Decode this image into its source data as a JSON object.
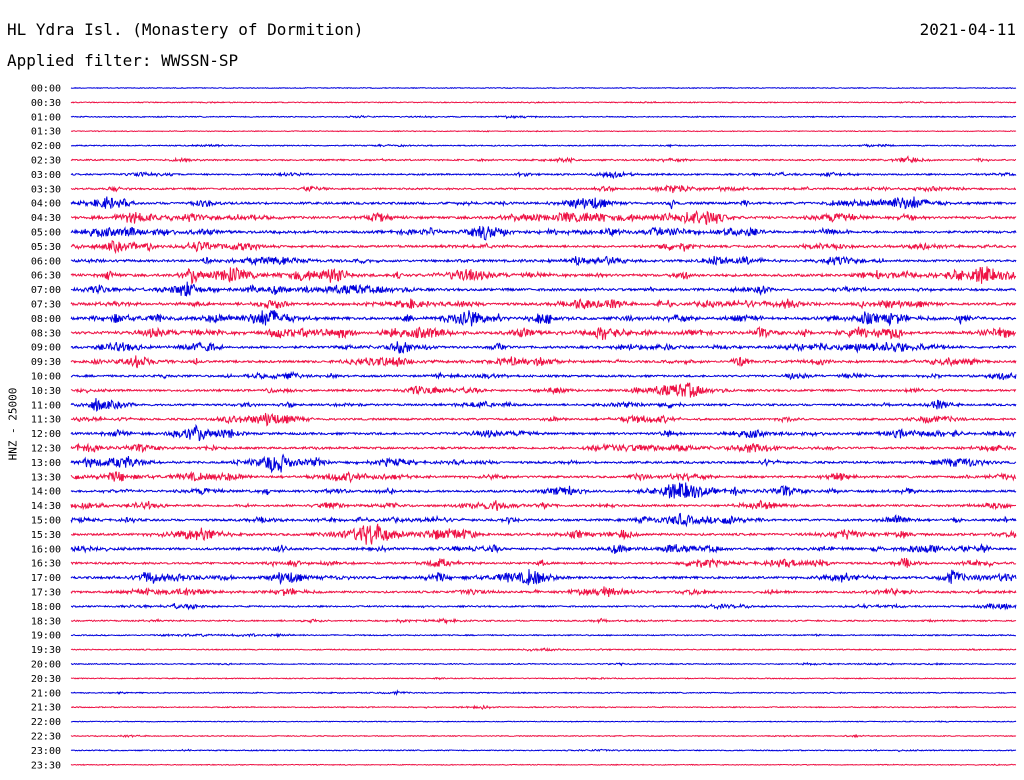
{
  "header": {
    "station": "HL Ydra Isl. (Monastery of Dormition)",
    "date": "2021-04-11",
    "filter": "Applied filter: WWSSN-SP"
  },
  "colors": {
    "line_a": "#0000dd",
    "line_b": "#ee1144"
  },
  "chart_data": {
    "type": "line",
    "title": "HL Ydra Isl. (Monastery of Dormition)",
    "subtitle": "Applied filter: WWSSN-SP",
    "date": "2021-04-11",
    "ylabel": "HNZ - 25000",
    "xlabel": "",
    "grid": false,
    "legend": "none",
    "minutes_per_line": 30,
    "series": [
      {
        "label": "00:00",
        "color": "#0000dd",
        "level": 0.3
      },
      {
        "label": "00:30",
        "color": "#ee1144",
        "level": 0.6
      },
      {
        "label": "01:00",
        "color": "#0000dd",
        "level": 0.7
      },
      {
        "label": "01:30",
        "color": "#ee1144",
        "level": 0.3
      },
      {
        "label": "02:00",
        "color": "#0000dd",
        "level": 0.8
      },
      {
        "label": "02:30",
        "color": "#ee1144",
        "level": 1.5
      },
      {
        "label": "03:00",
        "color": "#0000dd",
        "level": 1.6
      },
      {
        "label": "03:30",
        "color": "#ee1144",
        "level": 2.0
      },
      {
        "label": "04:00",
        "color": "#0000dd",
        "level": 3.0
      },
      {
        "label": "04:30",
        "color": "#ee1144",
        "level": 3.2
      },
      {
        "label": "05:00",
        "color": "#0000dd",
        "level": 3.0
      },
      {
        "label": "05:30",
        "color": "#ee1144",
        "level": 2.8
      },
      {
        "label": "06:00",
        "color": "#0000dd",
        "level": 2.8
      },
      {
        "label": "06:30",
        "color": "#ee1144",
        "level": 3.6
      },
      {
        "label": "07:00",
        "color": "#0000dd",
        "level": 3.2
      },
      {
        "label": "07:30",
        "color": "#ee1144",
        "level": 3.4
      },
      {
        "label": "08:00",
        "color": "#0000dd",
        "level": 3.6
      },
      {
        "label": "08:30",
        "color": "#ee1144",
        "level": 3.5
      },
      {
        "label": "09:00",
        "color": "#0000dd",
        "level": 3.0
      },
      {
        "label": "09:30",
        "color": "#ee1144",
        "level": 3.0
      },
      {
        "label": "10:00",
        "color": "#0000dd",
        "level": 2.4
      },
      {
        "label": "10:30",
        "color": "#ee1144",
        "level": 2.5
      },
      {
        "label": "11:00",
        "color": "#0000dd",
        "level": 2.4
      },
      {
        "label": "11:30",
        "color": "#ee1144",
        "level": 2.4
      },
      {
        "label": "12:00",
        "color": "#0000dd",
        "level": 2.8
      },
      {
        "label": "12:30",
        "color": "#ee1144",
        "level": 2.6
      },
      {
        "label": "13:00",
        "color": "#0000dd",
        "level": 2.8
      },
      {
        "label": "13:30",
        "color": "#ee1144",
        "level": 2.6
      },
      {
        "label": "14:00",
        "color": "#0000dd",
        "level": 2.8
      },
      {
        "label": "14:30",
        "color": "#ee1144",
        "level": 2.6
      },
      {
        "label": "15:00",
        "color": "#0000dd",
        "level": 2.8
      },
      {
        "label": "15:30",
        "color": "#ee1144",
        "level": 3.0
      },
      {
        "label": "16:00",
        "color": "#0000dd",
        "level": 3.0
      },
      {
        "label": "16:30",
        "color": "#ee1144",
        "level": 2.6
      },
      {
        "label": "17:00",
        "color": "#0000dd",
        "level": 3.0
      },
      {
        "label": "17:30",
        "color": "#ee1144",
        "level": 2.6
      },
      {
        "label": "18:00",
        "color": "#0000dd",
        "level": 1.6
      },
      {
        "label": "18:30",
        "color": "#ee1144",
        "level": 1.4
      },
      {
        "label": "19:00",
        "color": "#0000dd",
        "level": 0.9
      },
      {
        "label": "19:30",
        "color": "#ee1144",
        "level": 0.8
      },
      {
        "label": "20:00",
        "color": "#0000dd",
        "level": 0.8
      },
      {
        "label": "20:30",
        "color": "#ee1144",
        "level": 0.6
      },
      {
        "label": "21:00",
        "color": "#0000dd",
        "level": 0.8
      },
      {
        "label": "21:30",
        "color": "#ee1144",
        "level": 0.7
      },
      {
        "label": "22:00",
        "color": "#0000dd",
        "level": 0.3
      },
      {
        "label": "22:30",
        "color": "#ee1144",
        "level": 0.6
      },
      {
        "label": "23:00",
        "color": "#0000dd",
        "level": 0.7
      },
      {
        "label": "23:30",
        "color": "#ee1144",
        "level": 0.3
      }
    ]
  }
}
